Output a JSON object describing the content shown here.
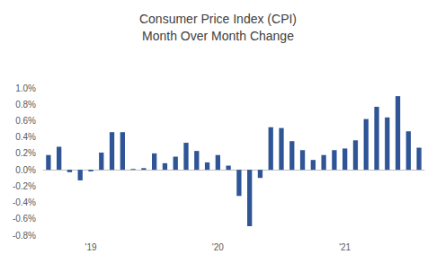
{
  "chart_data": {
    "type": "bar",
    "title": "Consumer Price Index (CPI)\nMonth Over Month Change",
    "categories": [
      null,
      null,
      null,
      null,
      "'19",
      null,
      null,
      null,
      null,
      null,
      null,
      null,
      null,
      null,
      null,
      null,
      "'20",
      null,
      null,
      null,
      null,
      null,
      null,
      null,
      null,
      null,
      null,
      null,
      "'21",
      null,
      null,
      null,
      null,
      null,
      null,
      null
    ],
    "values": [
      0.18,
      0.28,
      -0.03,
      -0.13,
      -0.02,
      0.21,
      0.46,
      0.46,
      0.01,
      0.02,
      0.2,
      0.08,
      0.16,
      0.33,
      0.23,
      0.09,
      0.18,
      0.05,
      -0.32,
      -0.69,
      -0.1,
      0.52,
      0.51,
      0.35,
      0.24,
      0.12,
      0.18,
      0.24,
      0.26,
      0.36,
      0.62,
      0.77,
      0.64,
      0.9,
      0.47,
      0.27
    ],
    "color": "#2f5597",
    "ylim": [
      -0.8,
      1.0
    ],
    "yticks": [
      {
        "value": -0.8,
        "label": "-0.8%"
      },
      {
        "value": -0.6,
        "label": "-0.6%"
      },
      {
        "value": -0.4,
        "label": "-0.4%"
      },
      {
        "value": -0.2,
        "label": "-0.2%"
      },
      {
        "value": 0,
        "label": "0.0%"
      },
      {
        "value": 0.2,
        "label": "0.2%"
      },
      {
        "value": 0.4,
        "label": "0.4%"
      },
      {
        "value": 0.6,
        "label": "0.6%"
      },
      {
        "value": 0.8,
        "label": "0.8%"
      },
      {
        "value": 1.0,
        "label": "1.0%"
      }
    ],
    "grid": false
  }
}
